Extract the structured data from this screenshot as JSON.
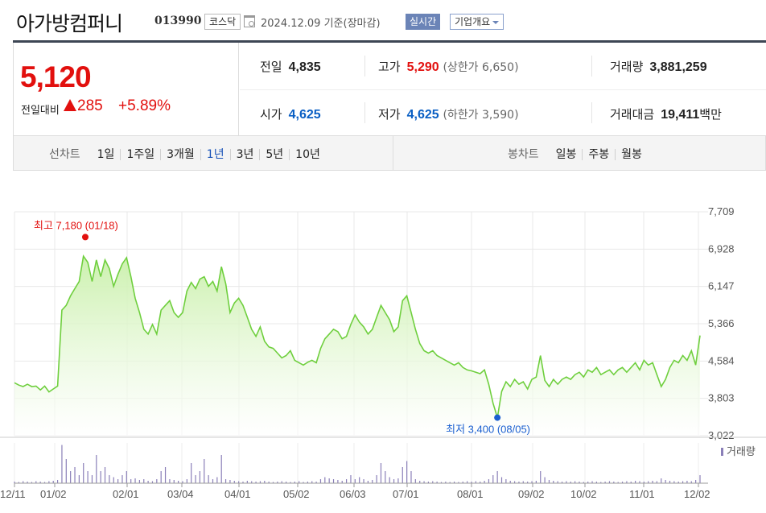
{
  "header": {
    "name": "아가방컴퍼니",
    "code": "013990",
    "market": "코스닥",
    "date": "2024.12.09",
    "basis": "기준(장마감)",
    "realtime_label": "실시간",
    "overview_label": "기업개요"
  },
  "price": {
    "current": "5,120",
    "change_label": "전일대비",
    "change": "285",
    "change_pct": "+5.89%",
    "color_up": "#e2100e",
    "color_down": "#0a5fc4"
  },
  "stats": {
    "prev_label": "전일",
    "prev": "4,835",
    "high_label": "고가",
    "high": "5,290",
    "upper_label": "(상한가",
    "upper": "6,650",
    "upper_close": ")",
    "volume_label": "거래량",
    "volume": "3,881,259",
    "open_label": "시가",
    "open": "4,625",
    "low_label": "저가",
    "low": "4,625",
    "lower_label": "(하한가",
    "lower": "3,590",
    "lower_close": ")",
    "value_label": "거래대금",
    "value": "19,411",
    "value_unit": "백만"
  },
  "periods": {
    "line_label": "선차트",
    "line_options": [
      "1일",
      "1주일",
      "3개월",
      "1년",
      "3년",
      "5년",
      "10년"
    ],
    "selected": "1년",
    "candle_label": "봉차트",
    "candle_options": [
      "일봉",
      "주봉",
      "월봉"
    ]
  },
  "chart_data": {
    "type": "area",
    "ylim": [
      3022,
      7709
    ],
    "y_ticks": [
      "7,709",
      "6,928",
      "6,147",
      "5,366",
      "4,584",
      "3,803",
      "3,022"
    ],
    "x_ticks": [
      "12/11",
      "01/02",
      "02/01",
      "03/04",
      "04/01",
      "05/02",
      "06/03",
      "07/01",
      "08/01",
      "09/02",
      "10/02",
      "11/01",
      "12/02"
    ],
    "max_label": "최고 7,180 (01/18)",
    "min_label": "최저 3,400 (08/05)",
    "max_value": 7180,
    "min_value": 3400,
    "volume_label": "거래량",
    "line_color": "#6fcf3e",
    "fill_color": "#c9f0aa",
    "max_color": "#e2100e",
    "min_color": "#1a5fd0",
    "series": [
      {
        "values": [
          4130,
          4080,
          4050,
          4100,
          4050,
          4060,
          3980,
          4060,
          3940,
          4000,
          4060,
          5650,
          5750,
          5950,
          6100,
          6250,
          6780,
          6650,
          6250,
          6700,
          6350,
          6700,
          6520,
          6150,
          6400,
          6620,
          6750,
          6350,
          5900,
          5600,
          5250,
          5150,
          5350,
          5150,
          5650,
          5750,
          5850,
          5600,
          5500,
          5600,
          6050,
          6230,
          6100,
          6300,
          6350,
          6150,
          6250,
          6050,
          6560,
          6200,
          5600,
          5800,
          5900,
          5750,
          5500,
          5250,
          5100,
          5300,
          5000,
          4880,
          4850,
          4750,
          4650,
          4700,
          4800,
          4600,
          4550,
          4500,
          4560,
          4600,
          4550,
          4850,
          5050,
          5150,
          5250,
          5200,
          5050,
          5100,
          5350,
          5550,
          5400,
          5300,
          5150,
          5250,
          5500,
          5750,
          5600,
          5450,
          5200,
          5300,
          5850,
          5950,
          5600,
          5250,
          4950,
          4800,
          4750,
          4800,
          4700,
          4650,
          4600,
          4550,
          4500,
          4550,
          4450,
          4400,
          4380,
          4350,
          4320,
          4400,
          4100,
          3700,
          3400,
          3950,
          4150,
          4050,
          4200,
          4100,
          4150,
          4000,
          4200,
          4250,
          4700,
          4180,
          4050,
          4200,
          4100,
          4200,
          4250,
          4200,
          4300,
          4350,
          4250,
          4400,
          4350,
          4450,
          4300,
          4350,
          4400,
          4300,
          4400,
          4450,
          4350,
          4450,
          4550,
          4400,
          4600,
          4500,
          4550,
          4300,
          4050,
          4200,
          4450,
          4600,
          4550,
          4700,
          4600,
          4800,
          4500,
          5120
        ]
      }
    ],
    "volume": [
      0.04,
      0.03,
      0.05,
      0.04,
      0.03,
      0.05,
      0.04,
      0.03,
      0.05,
      0.06,
      0.08,
      0.95,
      0.6,
      0.3,
      0.4,
      0.2,
      0.5,
      0.3,
      0.2,
      0.7,
      0.3,
      0.4,
      0.2,
      0.15,
      0.1,
      0.2,
      0.3,
      0.1,
      0.12,
      0.08,
      0.1,
      0.06,
      0.05,
      0.1,
      0.3,
      0.4,
      0.1,
      0.08,
      0.06,
      0.05,
      0.1,
      0.5,
      0.2,
      0.3,
      0.6,
      0.2,
      0.1,
      0.15,
      0.7,
      0.1,
      0.08,
      0.06,
      0.05,
      0.04,
      0.06,
      0.05,
      0.04,
      0.05,
      0.06,
      0.04,
      0.03,
      0.04,
      0.05,
      0.04,
      0.03,
      0.04,
      0.05,
      0.03,
      0.04,
      0.05,
      0.04,
      0.1,
      0.15,
      0.12,
      0.1,
      0.08,
      0.06,
      0.1,
      0.2,
      0.1,
      0.15,
      0.1,
      0.06,
      0.08,
      0.2,
      0.5,
      0.3,
      0.15,
      0.1,
      0.12,
      0.4,
      0.55,
      0.3,
      0.1,
      0.06,
      0.05,
      0.04,
      0.05,
      0.04,
      0.03,
      0.04,
      0.03,
      0.04,
      0.03,
      0.04,
      0.05,
      0.04,
      0.05,
      0.04,
      0.06,
      0.1,
      0.2,
      0.3,
      0.15,
      0.1,
      0.06,
      0.05,
      0.04,
      0.05,
      0.04,
      0.05,
      0.06,
      0.3,
      0.15,
      0.08,
      0.06,
      0.05,
      0.04,
      0.05,
      0.04,
      0.05,
      0.04,
      0.03,
      0.04,
      0.05,
      0.04,
      0.03,
      0.04,
      0.05,
      0.04,
      0.03,
      0.04,
      0.05,
      0.04,
      0.06,
      0.05,
      0.04,
      0.05,
      0.06,
      0.05,
      0.12,
      0.08,
      0.06,
      0.05,
      0.04,
      0.05,
      0.06,
      0.05,
      0.08,
      0.2
    ]
  }
}
